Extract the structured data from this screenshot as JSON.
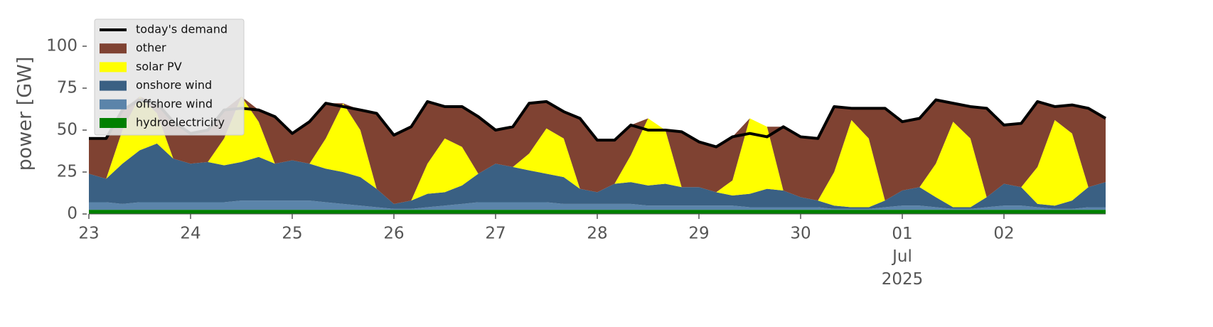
{
  "chart_data": {
    "type": "stacked_area",
    "ylabel": "power [GW]",
    "x": [
      0,
      0.17,
      0.33,
      0.5,
      0.67,
      0.83,
      1,
      1.17,
      1.33,
      1.5,
      1.67,
      1.83,
      2,
      2.17,
      2.33,
      2.5,
      2.67,
      2.83,
      3,
      3.17,
      3.33,
      3.5,
      3.67,
      3.83,
      4,
      4.17,
      4.33,
      4.5,
      4.67,
      4.83,
      5,
      5.17,
      5.33,
      5.5,
      5.67,
      5.83,
      6,
      6.17,
      6.33,
      6.5,
      6.67,
      6.83,
      7,
      7.17,
      7.33,
      7.5,
      7.67,
      7.83,
      8,
      8.17,
      8.33,
      8.5,
      8.67,
      8.83,
      9,
      9.17,
      9.33,
      9.5,
      9.67,
      9.83,
      10
    ],
    "xlim": [
      0,
      10
    ],
    "xticks": [
      {
        "value": 0,
        "label": "23"
      },
      {
        "value": 1,
        "label": "24"
      },
      {
        "value": 2,
        "label": "25"
      },
      {
        "value": 3,
        "label": "26"
      },
      {
        "value": 4,
        "label": "27"
      },
      {
        "value": 5,
        "label": "28"
      },
      {
        "value": 6,
        "label": "29"
      },
      {
        "value": 7,
        "label": "30"
      },
      {
        "value": 8,
        "label": "01\nJul\n2025"
      },
      {
        "value": 9,
        "label": "02"
      }
    ],
    "ylim": [
      0,
      115
    ],
    "yticks": [
      0,
      25,
      50,
      75,
      100
    ],
    "grid": false,
    "legend": "upper left",
    "series": [
      {
        "name": "hydroelectricity",
        "color": "#008000",
        "values": [
          2.5,
          2.5,
          2.5,
          2.5,
          2.5,
          2.5,
          2.5,
          2.5,
          2.5,
          2.5,
          2.5,
          2.5,
          2.5,
          2.5,
          2.5,
          2.5,
          2.5,
          2.5,
          2.5,
          2.5,
          2.5,
          2.5,
          2.5,
          2.5,
          2.5,
          2.5,
          2.5,
          2.5,
          2.5,
          2.5,
          2.5,
          2.5,
          2.5,
          2.5,
          2.5,
          2.5,
          2.5,
          2.5,
          2.5,
          2.5,
          2.5,
          2.5,
          2.5,
          2.5,
          2.5,
          2.5,
          2.5,
          2.5,
          2.5,
          2.5,
          2.5,
          2.5,
          2.5,
          2.5,
          2.5,
          2.5,
          2.5,
          2.5,
          2.5,
          2.5,
          2.5
        ]
      },
      {
        "name": "offshore wind",
        "color": "#5b84aa",
        "values": [
          4.5,
          4.5,
          3.5,
          4.5,
          4.5,
          4.5,
          4.5,
          4.5,
          4.5,
          5.5,
          5.5,
          5.5,
          5.5,
          5.5,
          4.5,
          3.5,
          2.5,
          1.5,
          0.5,
          0.5,
          1.5,
          2.5,
          3.5,
          4.5,
          4.5,
          4.5,
          4.5,
          4.5,
          3.5,
          3.5,
          3.5,
          3.5,
          3.5,
          2.5,
          2.5,
          2.5,
          2.5,
          2.5,
          2.5,
          1.5,
          1.5,
          1.5,
          1.5,
          1.5,
          0.5,
          0.5,
          0.5,
          1.5,
          2.5,
          2.5,
          1.5,
          0.5,
          0.5,
          1.5,
          2.5,
          2.5,
          1.5,
          0.5,
          0.5,
          1.5,
          1.5
        ]
      },
      {
        "name": "onshore wind",
        "color": "#3a6083",
        "values": [
          17,
          14,
          24,
          31,
          35,
          26,
          23,
          24,
          22,
          23,
          26,
          22,
          24,
          22,
          20,
          19,
          17,
          11,
          3,
          5,
          8,
          8,
          11,
          17,
          23,
          21,
          19,
          17,
          16,
          9,
          7,
          12,
          13,
          12,
          13,
          11,
          11,
          8,
          6,
          8,
          11,
          10,
          6,
          4,
          2,
          1,
          1,
          4,
          9,
          11,
          6,
          1,
          1,
          6,
          13,
          11,
          2,
          2,
          5,
          12,
          15
        ]
      },
      {
        "name": "solar PV",
        "color": "#ffff00",
        "values": [
          0,
          0,
          20,
          32,
          18,
          0,
          0,
          0,
          16,
          39,
          21,
          0,
          0,
          0,
          18,
          41,
          28,
          0,
          0,
          0,
          18,
          32,
          23,
          0,
          0,
          0,
          10,
          27,
          23,
          0,
          0,
          0,
          16,
          40,
          32,
          0,
          0,
          0,
          9,
          45,
          37,
          0,
          0,
          0,
          20,
          52,
          41,
          0,
          0,
          0,
          20,
          51,
          41,
          0,
          0,
          0,
          22,
          51,
          40,
          0,
          0
        ]
      },
      {
        "name": "other",
        "color": "#7f4232",
        "values": [
          21,
          24,
          12,
          0,
          6,
          22,
          18,
          19,
          17,
          0,
          7,
          28,
          16,
          25,
          21,
          0,
          12,
          45,
          41,
          44,
          37,
          19,
          24,
          34,
          20,
          24,
          30,
          16,
          16,
          42,
          31,
          26,
          18,
          0,
          0,
          33,
          27,
          27,
          26,
          0,
          0,
          38,
          36,
          37,
          39,
          7,
          18,
          55,
          41,
          41,
          38,
          11,
          19,
          53,
          35,
          38,
          39,
          8,
          17,
          47,
          38
        ]
      }
    ],
    "demand": {
      "name": "today's demand",
      "type": "line",
      "color": "#000000",
      "values": [
        45,
        45,
        62,
        68,
        66,
        55,
        48,
        50,
        62,
        63,
        62,
        58,
        48,
        55,
        66,
        64,
        62,
        60,
        47,
        52,
        67,
        64,
        64,
        58,
        50,
        52,
        66,
        67,
        61,
        57,
        44,
        44,
        53,
        50,
        50,
        49,
        43,
        40,
        46,
        48,
        46,
        52,
        46,
        45,
        64,
        63,
        63,
        63,
        55,
        57,
        68,
        66,
        64,
        63,
        53,
        54,
        67,
        64,
        65,
        63,
        57
      ]
    }
  }
}
